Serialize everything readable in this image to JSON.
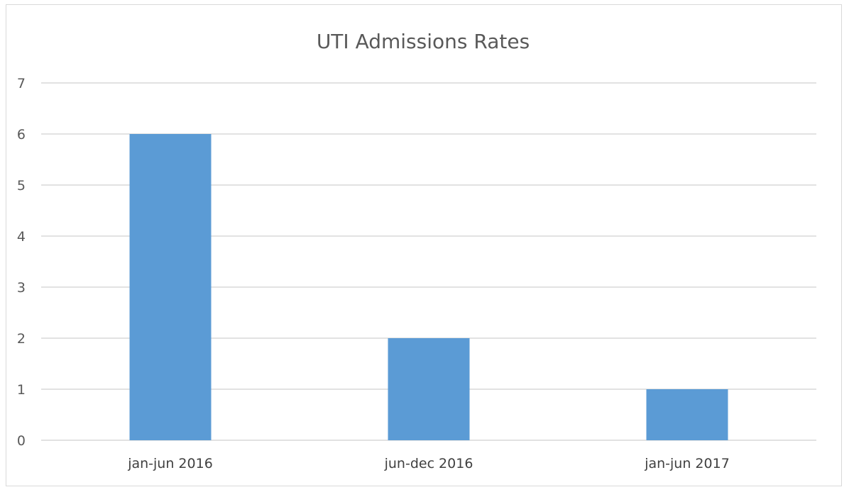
{
  "chart_data": {
    "type": "bar",
    "title": "UTI Admissions  Rates",
    "xlabel": "",
    "ylabel": "",
    "categories": [
      "jan-jun 2016",
      "jun-dec 2016",
      "jan-jun 2017"
    ],
    "values": [
      6,
      2,
      1
    ],
    "ylim": [
      0,
      7
    ],
    "yticks": [
      "0",
      "1",
      "2",
      "3",
      "4",
      "5",
      "6",
      "7"
    ],
    "grid": true,
    "bar_color": "#5b9bd5",
    "grid_color": "#d9d9d9"
  }
}
